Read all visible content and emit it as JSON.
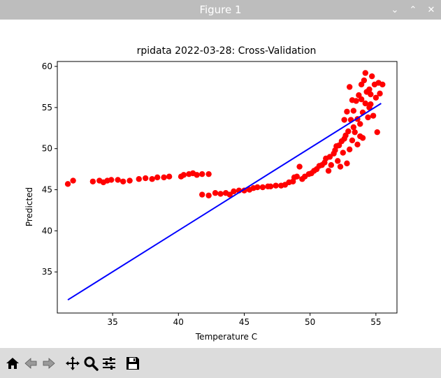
{
  "window": {
    "title": "Figure 1",
    "controls": [
      "chevron-down",
      "chevron-up",
      "close"
    ]
  },
  "toolbar": {
    "buttons": [
      "home-icon",
      "back-icon",
      "forward-icon",
      "pan-icon",
      "zoom-icon",
      "configure-icon",
      "save-icon"
    ]
  },
  "chart_data": {
    "type": "scatter",
    "title": "rpidata 2022-03-28: Cross-Validation",
    "xlabel": "Temperature C",
    "ylabel": "Predicted",
    "xlim": [
      30.8,
      56.6
    ],
    "ylim": [
      30.0,
      60.6
    ],
    "xticks": [
      35,
      40,
      45,
      50,
      55
    ],
    "yticks": [
      35,
      40,
      45,
      50,
      55,
      60
    ],
    "grid": false,
    "scatter_color": "#ff0000",
    "line_color": "#0000ff",
    "fit_line": {
      "x": [
        31.6,
        55.4
      ],
      "y": [
        31.6,
        55.5
      ]
    },
    "points": [
      [
        31.6,
        45.7
      ],
      [
        32.0,
        46.1
      ],
      [
        33.5,
        46.0
      ],
      [
        34.0,
        46.1
      ],
      [
        34.3,
        45.9
      ],
      [
        34.6,
        46.1
      ],
      [
        34.9,
        46.2
      ],
      [
        35.4,
        46.2
      ],
      [
        35.8,
        46.0
      ],
      [
        36.3,
        46.1
      ],
      [
        37.0,
        46.3
      ],
      [
        37.5,
        46.4
      ],
      [
        38.0,
        46.3
      ],
      [
        38.4,
        46.5
      ],
      [
        38.9,
        46.5
      ],
      [
        39.3,
        46.6
      ],
      [
        40.2,
        46.6
      ],
      [
        40.4,
        46.8
      ],
      [
        40.8,
        46.9
      ],
      [
        41.1,
        47.0
      ],
      [
        41.4,
        46.8
      ],
      [
        41.8,
        46.9
      ],
      [
        42.3,
        46.9
      ],
      [
        41.8,
        44.4
      ],
      [
        42.3,
        44.3
      ],
      [
        42.8,
        44.6
      ],
      [
        43.2,
        44.5
      ],
      [
        43.6,
        44.6
      ],
      [
        43.9,
        44.4
      ],
      [
        44.2,
        44.8
      ],
      [
        44.6,
        44.9
      ],
      [
        45.0,
        44.9
      ],
      [
        45.4,
        45.0
      ],
      [
        45.7,
        45.2
      ],
      [
        46.0,
        45.3
      ],
      [
        46.4,
        45.3
      ],
      [
        46.8,
        45.4
      ],
      [
        47.0,
        45.4
      ],
      [
        47.4,
        45.5
      ],
      [
        47.8,
        45.5
      ],
      [
        48.1,
        45.6
      ],
      [
        48.4,
        45.9
      ],
      [
        48.7,
        46.0
      ],
      [
        48.8,
        46.5
      ],
      [
        49.0,
        46.6
      ],
      [
        49.2,
        47.8
      ],
      [
        49.4,
        46.3
      ],
      [
        49.6,
        46.6
      ],
      [
        49.9,
        46.9
      ],
      [
        50.1,
        47.0
      ],
      [
        50.3,
        47.3
      ],
      [
        50.5,
        47.5
      ],
      [
        50.7,
        47.9
      ],
      [
        50.9,
        48.0
      ],
      [
        51.1,
        48.3
      ],
      [
        51.2,
        48.8
      ],
      [
        51.4,
        47.3
      ],
      [
        51.5,
        49.0
      ],
      [
        51.6,
        48.0
      ],
      [
        51.8,
        49.4
      ],
      [
        51.9,
        49.8
      ],
      [
        52.0,
        50.3
      ],
      [
        52.1,
        48.5
      ],
      [
        52.2,
        50.4
      ],
      [
        52.3,
        47.8
      ],
      [
        52.4,
        50.9
      ],
      [
        52.5,
        49.5
      ],
      [
        52.6,
        51.2
      ],
      [
        52.7,
        51.6
      ],
      [
        52.8,
        48.2
      ],
      [
        52.9,
        52.1
      ],
      [
        53.0,
        49.9
      ],
      [
        53.1,
        53.5
      ],
      [
        53.2,
        51.0
      ],
      [
        53.3,
        54.6
      ],
      [
        53.4,
        52.0
      ],
      [
        53.5,
        55.8
      ],
      [
        53.6,
        50.5
      ],
      [
        53.7,
        56.5
      ],
      [
        53.8,
        53.0
      ],
      [
        53.9,
        57.8
      ],
      [
        54.0,
        54.4
      ],
      [
        54.1,
        58.3
      ],
      [
        54.2,
        55.5
      ],
      [
        54.3,
        56.9
      ],
      [
        54.4,
        53.8
      ],
      [
        54.5,
        57.2
      ],
      [
        54.6,
        55.4
      ],
      [
        54.7,
        58.8
      ],
      [
        54.8,
        54.0
      ],
      [
        54.9,
        57.8
      ],
      [
        55.0,
        56.2
      ],
      [
        55.1,
        52.0
      ],
      [
        55.2,
        58.0
      ],
      [
        55.3,
        56.7
      ],
      [
        55.5,
        57.8
      ],
      [
        54.2,
        59.2
      ],
      [
        53.8,
        51.5
      ],
      [
        52.6,
        53.5
      ],
      [
        52.8,
        54.5
      ],
      [
        53.3,
        52.6
      ],
      [
        53.6,
        53.6
      ],
      [
        54.0,
        51.3
      ],
      [
        54.6,
        56.6
      ],
      [
        53.9,
        56.0
      ],
      [
        54.5,
        55.0
      ],
      [
        53.2,
        55.9
      ],
      [
        53.0,
        57.5
      ]
    ]
  }
}
